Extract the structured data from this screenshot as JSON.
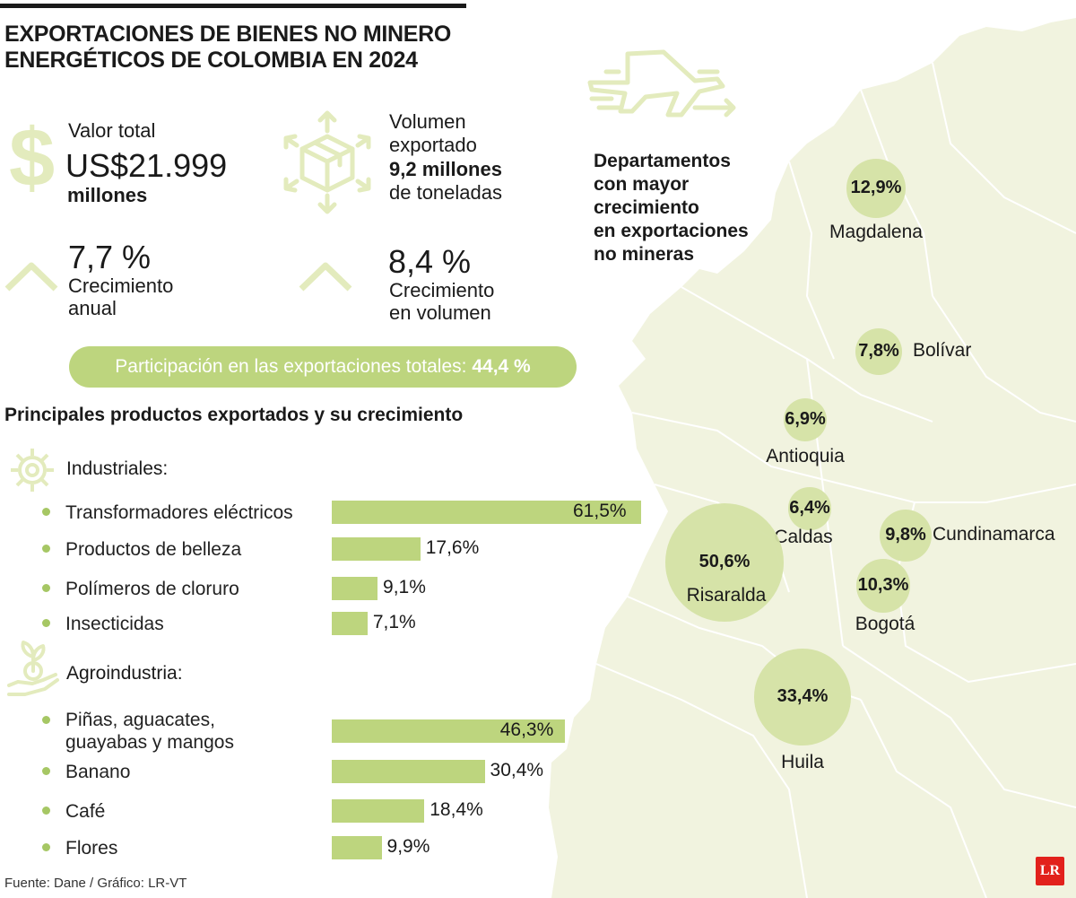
{
  "title_lines": [
    "EXPORTACIONES DE BIENES NO MINERO",
    "ENERGÉTICOS DE COLOMBIA EN 2024"
  ],
  "icons": [
    "dollar-icon",
    "package-icon",
    "chevron-up-icon",
    "gear-icon",
    "plant-hand-icon",
    "airplane-icon"
  ],
  "colors": {
    "accent": "#bdd57e",
    "dot": "#a6c764",
    "icon": "#e3ebbd",
    "map": "#f1f3df",
    "logo": "#e2211c"
  },
  "stats": {
    "total_label": "Valor total",
    "total_value": "US$21.999",
    "total_unit": "millones",
    "volume_label_1": "Volumen",
    "volume_label_2": "exportado",
    "volume_value": "9,2 millones",
    "volume_unit": "de toneladas",
    "growth_value": "7,7 %",
    "growth_label_1": "Crecimiento",
    "growth_label_2": "anual",
    "vgrowth_value": "8,4 %",
    "vgrowth_label_1": "Crecimiento",
    "vgrowth_label_2": "en volumen"
  },
  "share": {
    "label": "Participación en las exportaciones totales:",
    "value": "44,4 %"
  },
  "products_title": "Principales productos exportados y su crecimiento",
  "map_title_lines": [
    "Departamentos",
    "con mayor",
    "crecimiento",
    "en exportaciones",
    "no mineras"
  ],
  "source": "Fuente: Dane / Gráfico: LR-VT",
  "logo": "LR",
  "chart_data": [
    {
      "type": "bar",
      "orientation": "horizontal",
      "title": "Principales productos exportados y su crecimiento",
      "unit": "%",
      "groups": [
        {
          "name": "Industriales:",
          "categories": [
            "Transformadores eléctricos",
            "Productos de belleza",
            "Polímeros de cloruro",
            "Insecticidas"
          ],
          "values": [
            61.5,
            17.6,
            9.1,
            7.1
          ],
          "labels": [
            "61,5%",
            "17,6%",
            "9,1%",
            "7,1%"
          ]
        },
        {
          "name": "Agroindustria:",
          "categories": [
            "Piñas, aguacates, guayabas y mangos",
            "Banano",
            "Café",
            "Flores"
          ],
          "category_lines": [
            [
              "Piñas, aguacates,",
              "guayabas y mangos"
            ],
            [
              "Banano"
            ],
            [
              "Café"
            ],
            [
              "Flores"
            ]
          ],
          "values": [
            46.3,
            30.4,
            18.4,
            9.9
          ],
          "labels": [
            "46,3%",
            "30,4%",
            "18,4%",
            "9,9%"
          ]
        }
      ]
    },
    {
      "type": "bubble",
      "title": "Departamentos con mayor crecimiento en exportaciones no mineras",
      "unit": "%",
      "categories": [
        "Magdalena",
        "Bolívar",
        "Antioquia",
        "Caldas",
        "Cundinamarca",
        "Risaralda",
        "Bogotá",
        "Huila"
      ],
      "values": [
        12.9,
        7.8,
        6.9,
        6.4,
        9.8,
        50.6,
        10.3,
        33.4
      ],
      "labels": [
        "12,9%",
        "7,8%",
        "6,9%",
        "6,4%",
        "9,8%",
        "50,6%",
        "10,3%",
        "33,4%"
      ]
    }
  ]
}
